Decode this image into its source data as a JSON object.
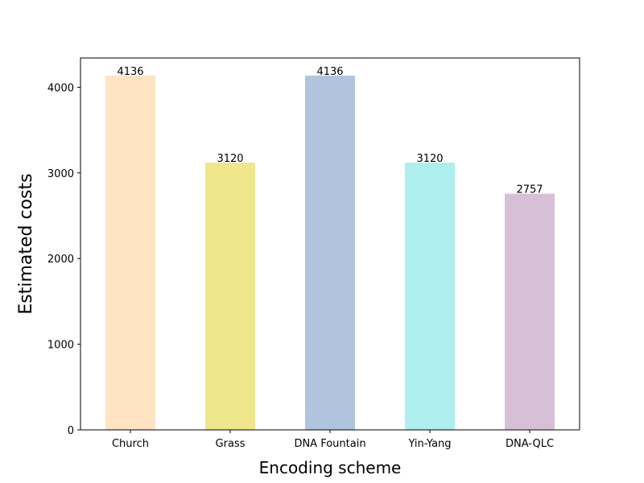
{
  "chart_data": {
    "type": "bar",
    "categories": [
      "Church",
      "Grass",
      "DNA Fountain",
      "Yin-Yang",
      "DNA-QLC"
    ],
    "values": [
      4136,
      3120,
      4136,
      3120,
      2757
    ],
    "data_labels": [
      "4136",
      "3120",
      "4136",
      "3120",
      "2757"
    ],
    "colors": [
      "#ffe4c4",
      "#f0e68c",
      "#b0c4de",
      "#afeeee",
      "#d8bfd8"
    ],
    "xlabel": "Encoding scheme",
    "ylabel": "Estimated costs",
    "ylim": [
      0,
      4342
    ],
    "yticks": [
      0,
      1000,
      2000,
      3000,
      4000
    ],
    "ytick_labels": [
      "0",
      "1000",
      "2000",
      "3000",
      "4000"
    ],
    "grid": false,
    "legend": "none"
  }
}
